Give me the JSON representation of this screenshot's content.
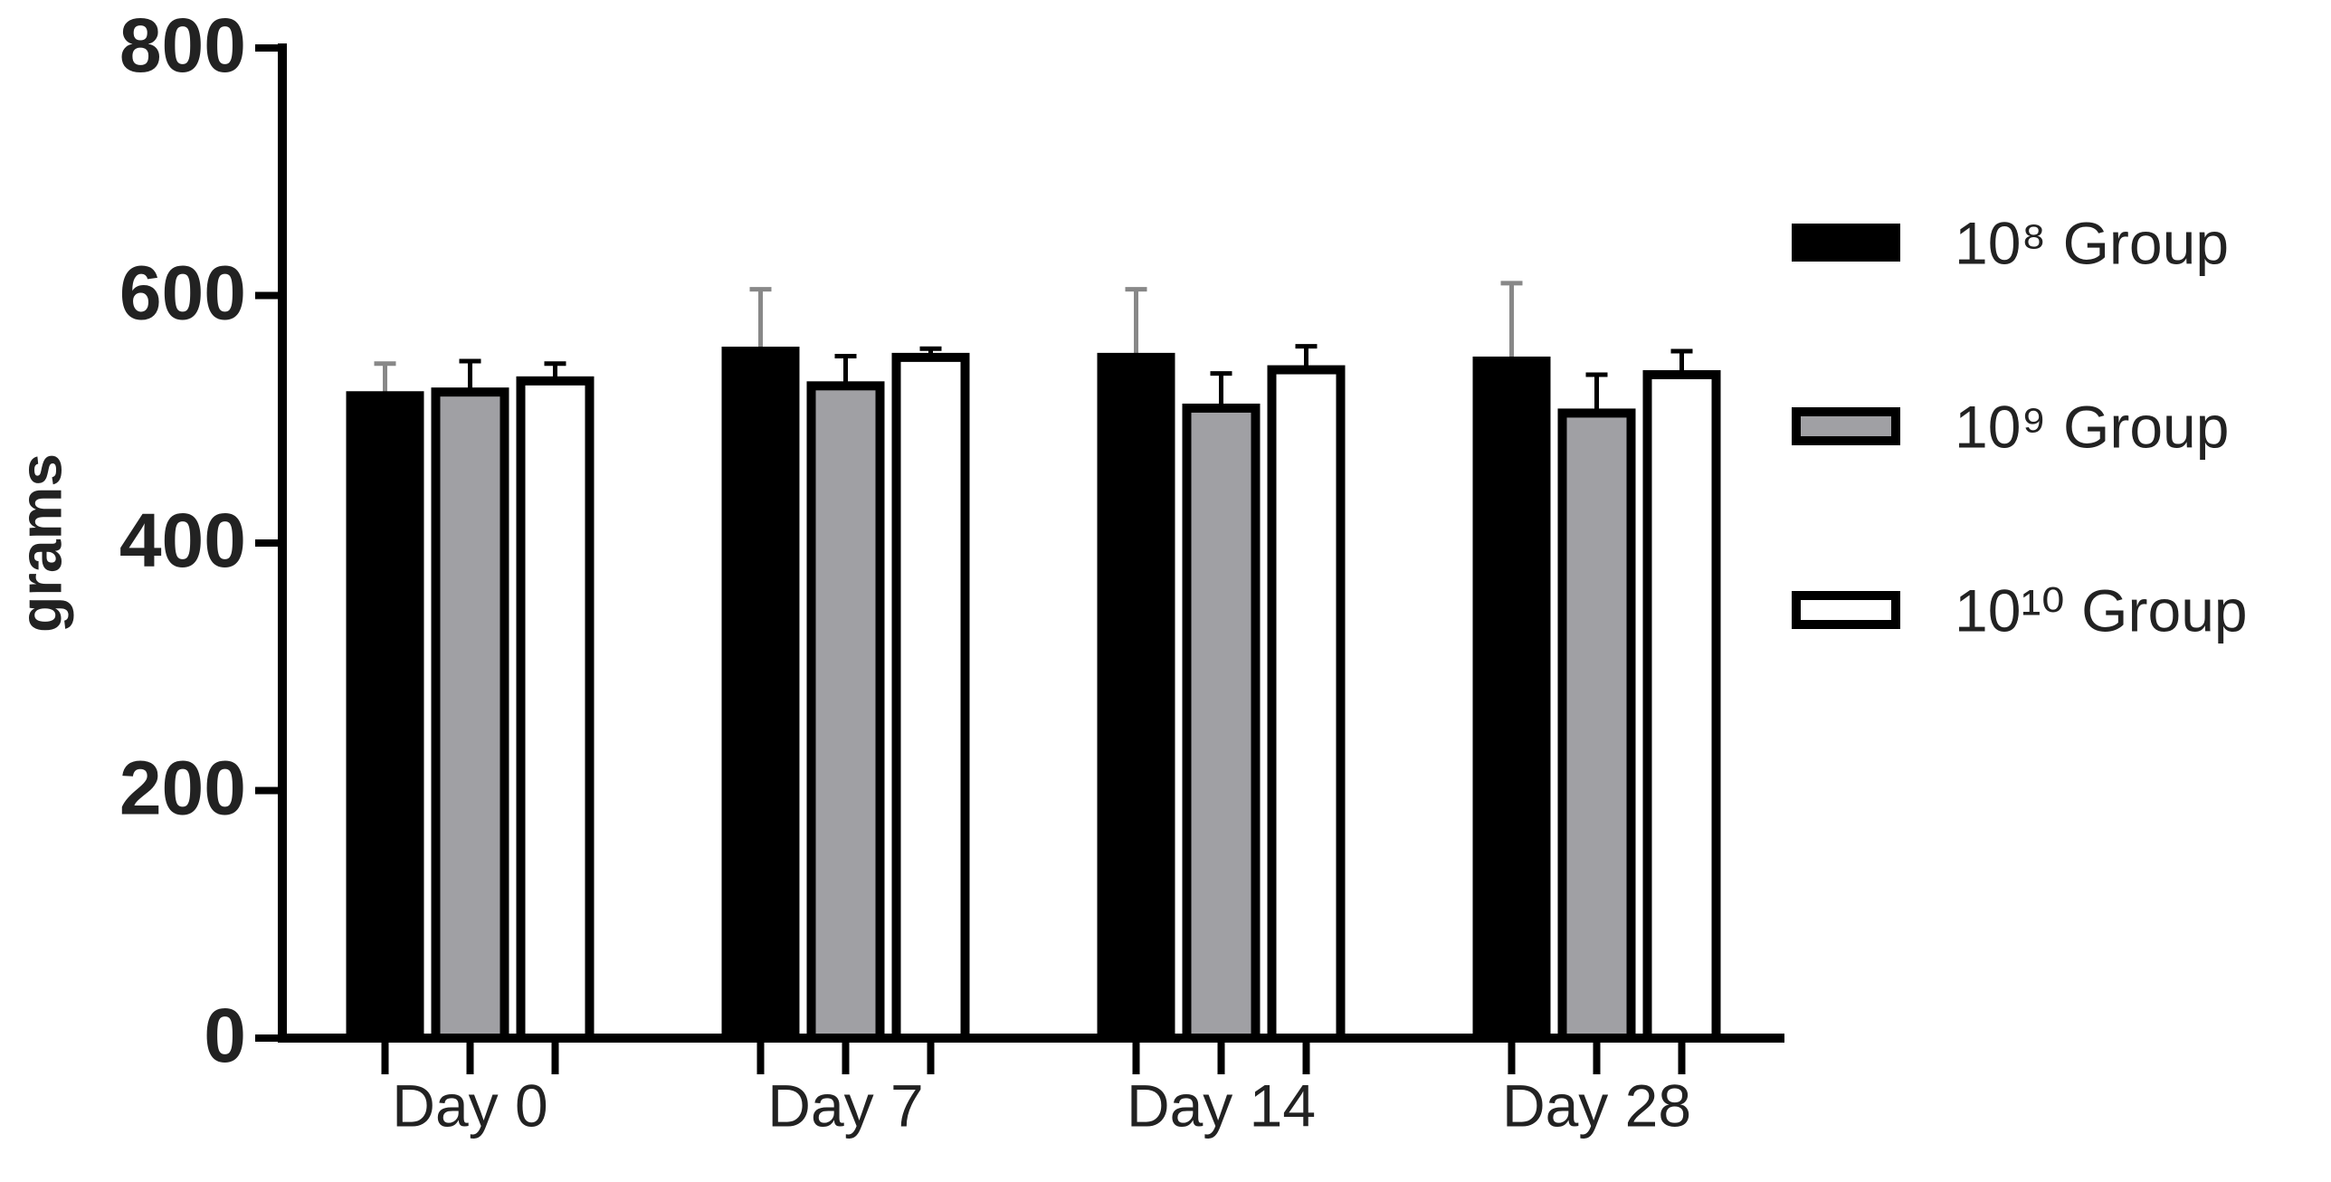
{
  "chart_data": {
    "type": "bar",
    "y_label": "grams",
    "categories": [
      "Day 0",
      "Day 7",
      "Day 14",
      "Day 28"
    ],
    "series": [
      {
        "name": "10⁸ Group",
        "color": "#000000",
        "error_color": "#888888",
        "values": [
          519,
          555,
          550,
          547
        ],
        "errors": [
          26,
          50,
          55,
          63
        ]
      },
      {
        "name": "10⁹ Group",
        "color": "#a0a0a4",
        "error_color": "#000000",
        "values": [
          522,
          527,
          509,
          505
        ],
        "errors": [
          25,
          24,
          28,
          31
        ]
      },
      {
        "name": "10¹⁰ Group",
        "color": "#ffffff",
        "error_color": "#000000",
        "values": [
          531,
          550,
          540,
          536
        ],
        "errors": [
          14,
          7,
          19,
          19
        ]
      }
    ],
    "ylim": [
      0,
      800
    ],
    "yticks": [
      0,
      200,
      400,
      600,
      800
    ],
    "legend": "right"
  }
}
